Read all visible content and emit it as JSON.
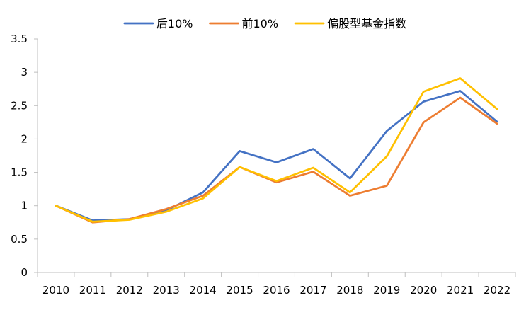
{
  "chart_data": {
    "type": "line",
    "categories": [
      "2010",
      "2011",
      "2012",
      "2013",
      "2014",
      "2015",
      "2016",
      "2017",
      "2018",
      "2019",
      "2020",
      "2021",
      "2022"
    ],
    "series": [
      {
        "name": "后10%",
        "color": "#4472C4",
        "values": [
          1.0,
          0.78,
          0.8,
          0.93,
          1.2,
          1.82,
          1.65,
          1.85,
          1.41,
          2.12,
          2.56,
          2.72,
          2.26
        ]
      },
      {
        "name": "前10%",
        "color": "#ED7D31",
        "values": [
          1.0,
          0.75,
          0.8,
          0.95,
          1.15,
          1.58,
          1.35,
          1.51,
          1.15,
          1.3,
          2.25,
          2.62,
          2.23
        ]
      },
      {
        "name": "偏股型基金指数",
        "color": "#FFC000",
        "values": [
          1.0,
          0.76,
          0.79,
          0.91,
          1.11,
          1.58,
          1.37,
          1.57,
          1.2,
          1.74,
          2.71,
          2.91,
          2.45
        ]
      }
    ],
    "y_ticks": [
      "0",
      "0.5",
      "1",
      "1.5",
      "2",
      "2.5",
      "3",
      "3.5"
    ],
    "ylim": [
      0,
      3.5
    ],
    "grid": false,
    "legend_position": "top"
  }
}
